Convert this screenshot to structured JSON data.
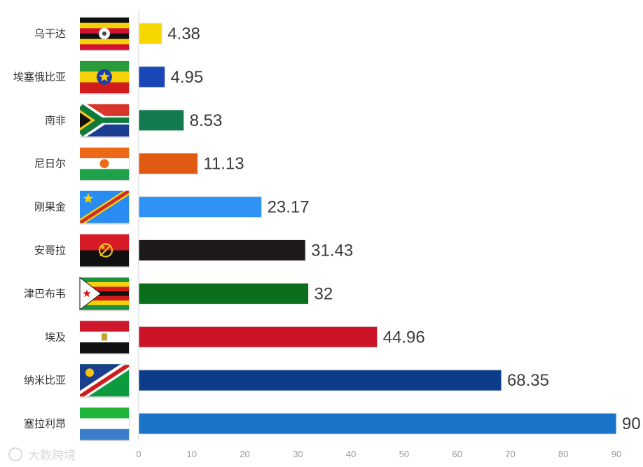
{
  "chart_data": {
    "type": "bar",
    "orientation": "horizontal",
    "categories": [
      "乌干达",
      "埃塞俄比亚",
      "南非",
      "尼日尔",
      "刚果金",
      "安哥拉",
      "津巴布韦",
      "埃及",
      "纳米比亚",
      "塞拉利昂"
    ],
    "values": [
      4.38,
      4.95,
      8.53,
      11.13,
      23.17,
      31.43,
      32,
      44.96,
      68.35,
      90
    ],
    "value_labels": [
      "4.38",
      "4.95",
      "8.53",
      "11.13",
      "23.17",
      "31.43",
      "32",
      "44.96",
      "68.35",
      "90"
    ],
    "bar_colors": [
      "#f5d800",
      "#1a47b8",
      "#137a50",
      "#e05a12",
      "#2e93f5",
      "#1e1a1a",
      "#0b6e1a",
      "#cc1428",
      "#0d3c8a",
      "#1a73c9"
    ],
    "flag_icons": [
      "flag-uganda",
      "flag-ethiopia",
      "flag-south-africa",
      "flag-niger",
      "flag-dr-congo",
      "flag-angola",
      "flag-zimbabwe",
      "flag-egypt",
      "flag-namibia",
      "flag-sierra-leone"
    ],
    "xlim": [
      0,
      90
    ],
    "xticks": [
      "0",
      "10",
      "20",
      "30",
      "40",
      "50",
      "60",
      "70",
      "80",
      "90"
    ],
    "grid": false,
    "legend": "none",
    "title": "",
    "xlabel": "",
    "ylabel": ""
  },
  "watermark": "大数跨境"
}
